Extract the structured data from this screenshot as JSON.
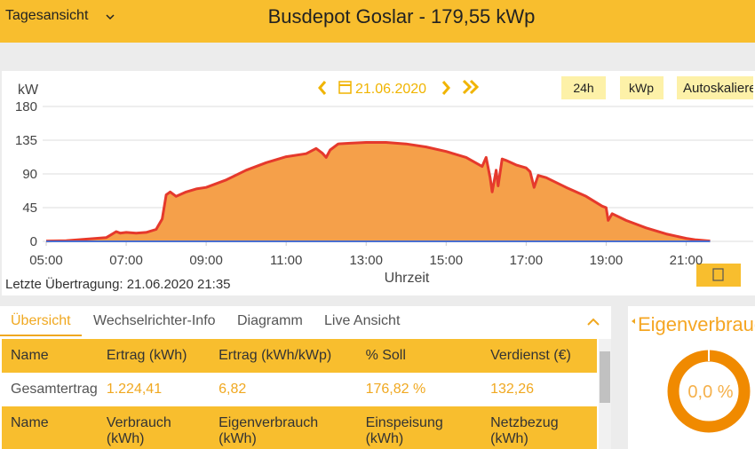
{
  "header": {
    "view_menu": "Tagesansicht",
    "title": "Busdepot Goslar - 179,55 kWp"
  },
  "toolbar": {
    "date": "21.06.2020",
    "buttons": [
      "24h",
      "kWp",
      "Autoskalieren"
    ]
  },
  "chart_data": {
    "type": "area",
    "y_label": "kW",
    "x_label": "Uhrzeit",
    "x": [
      5.0,
      5.5,
      6.0,
      6.5,
      6.6,
      6.75,
      6.85,
      7.0,
      7.25,
      7.5,
      7.75,
      7.9,
      8.0,
      8.1,
      8.25,
      8.5,
      8.75,
      9.0,
      9.5,
      10.0,
      10.5,
      11.0,
      11.5,
      11.75,
      11.9,
      12.0,
      12.1,
      12.3,
      12.6,
      13.0,
      13.5,
      14.0,
      14.5,
      15.0,
      15.5,
      15.9,
      16.0,
      16.1,
      16.15,
      16.25,
      16.3,
      16.4,
      16.5,
      16.75,
      17.0,
      17.1,
      17.2,
      17.3,
      17.5,
      18.0,
      18.5,
      18.9,
      19.0,
      19.05,
      19.15,
      19.5,
      20.0,
      20.5,
      21.0,
      21.25,
      21.5,
      21.6
    ],
    "series": [
      {
        "color": "#e5392c",
        "fill": "#f5a04a",
        "values": [
          0.5,
          1,
          3,
          5,
          8,
          13,
          11,
          12,
          11,
          12,
          16,
          30,
          62,
          66,
          60,
          66,
          70,
          72,
          82,
          95,
          105,
          113,
          117,
          124,
          118,
          112,
          122,
          130,
          131,
          132,
          132,
          130,
          126,
          120,
          112,
          100,
          112,
          85,
          66,
          95,
          74,
          110,
          108,
          102,
          98,
          93,
          72,
          88,
          85,
          72,
          60,
          47,
          45,
          28,
          37,
          28,
          18,
          10,
          4,
          2,
          1,
          0.5
        ]
      }
    ],
    "xlim": [
      5,
      22.5
    ],
    "ylim": [
      0,
      180
    ],
    "xticks": [
      {
        "value": 5,
        "label": "05:00"
      },
      {
        "value": 7,
        "label": "07:00"
      },
      {
        "value": 9,
        "label": "09:00"
      },
      {
        "value": 11,
        "label": "11:00"
      },
      {
        "value": 13,
        "label": "13:00"
      },
      {
        "value": 15,
        "label": "15:00"
      },
      {
        "value": 17,
        "label": "17:00"
      },
      {
        "value": 19,
        "label": "19:00"
      },
      {
        "value": 21,
        "label": "21:00"
      }
    ],
    "yticks": [
      0,
      45,
      90,
      135,
      180
    ],
    "grid": true
  },
  "status": "Letzte Übertragung: 21.06.2020 21:35",
  "tabs": [
    "Übersicht",
    "Wechselrichter-Info",
    "Diagramm",
    "Live Ansicht"
  ],
  "table": {
    "rows": [
      [
        "Name",
        "Ertrag (kWh)",
        "Ertrag (kWh/kWp)",
        "% Soll",
        "Verdienst (€)"
      ],
      [
        "Gesamtertrag",
        "1.224,41",
        "6,82",
        "176,82 %",
        "132,26"
      ],
      [
        "Name",
        "Verbrauch (kWh)",
        "Eigenverbrauch (kWh)",
        "Einspeisung (kWh)",
        "Netzbezug (kWh)"
      ]
    ]
  },
  "self_consumption": {
    "title": "Eigenverbrauch",
    "value": "0,0 %"
  }
}
